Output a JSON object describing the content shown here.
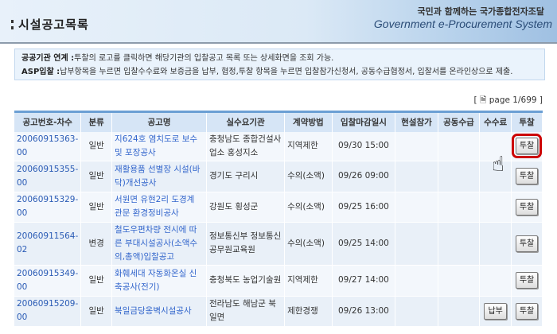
{
  "header": {
    "title": "시설공고목록",
    "brand_slogan": "국민과 함께하는 국가종합전자조달",
    "brand_name": "Government e-Procurement System"
  },
  "info": {
    "line1_label": "공공기관 연계 :",
    "line1_text": "투찰의 로고를 클릭하면 해당기관의 입찰공고 목록 또는 상세화면을 조회 가능.",
    "line2_label": "ASP입찰 :",
    "line2_text": "납부항목을 누르면 입찰수수료와 보증금을 납부,  협정,투찰 항목을 누르면 입찰참가신청서, 공동수급협정서, 입찰서를 온라인상으로 제출."
  },
  "pagination": {
    "text": "page 1/699"
  },
  "table": {
    "headers": [
      "공고번호-차수",
      "분류",
      "공고명",
      "실수요기관",
      "계약방법",
      "입찰마감일시",
      "현설참가",
      "공동수급",
      "수수료",
      "투찰"
    ],
    "rows": [
      {
        "no": "20060915363-00",
        "type": "일반",
        "name": "지624호 염치도로 보수 및 포장공사",
        "agency": "충청남도 종합건설사업소 홍성지소",
        "method": "지역제한",
        "deadline": "09/30 15:00",
        "fee": "",
        "bid": "투찰"
      },
      {
        "no": "20060915355-00",
        "type": "일반",
        "name": "재활용품 선별장 시설(바닥)개선공사",
        "agency": "경기도 구리시",
        "method": "수의(소액)",
        "deadline": "09/26 09:00",
        "fee": "",
        "bid": "투찰"
      },
      {
        "no": "20060915329-00",
        "type": "일반",
        "name": "서원면 유현2리 도경계 관문 환경정비공사",
        "agency": "강원도 횡성군",
        "method": "수의(소액)",
        "deadline": "09/25 16:00",
        "fee": "",
        "bid": "투찰"
      },
      {
        "no": "20060911564-02",
        "type": "변경",
        "name": "철도우편차량 전시에 따른 부대시설공사(소액수의,총액)입찰공고",
        "agency": "정보통신부 정보통신공무원교육원",
        "method": "수의(소액)",
        "deadline": "09/25 14:00",
        "fee": "",
        "bid": "투찰"
      },
      {
        "no": "20060915349-00",
        "type": "일반",
        "name": "화훼세대 자동화온실 신축공사(전기)",
        "agency": "충청북도 농업기술원",
        "method": "지역제한",
        "deadline": "09/27 14:00",
        "fee": "",
        "bid": "투찰"
      },
      {
        "no": "20060915209-00",
        "type": "일반",
        "name": "북일금당옹벽시설공사",
        "agency": "전라남도 해남군 북일면",
        "method": "제한경쟁",
        "deadline": "09/26 13:00",
        "fee": "납부",
        "bid": "투찰"
      }
    ]
  }
}
